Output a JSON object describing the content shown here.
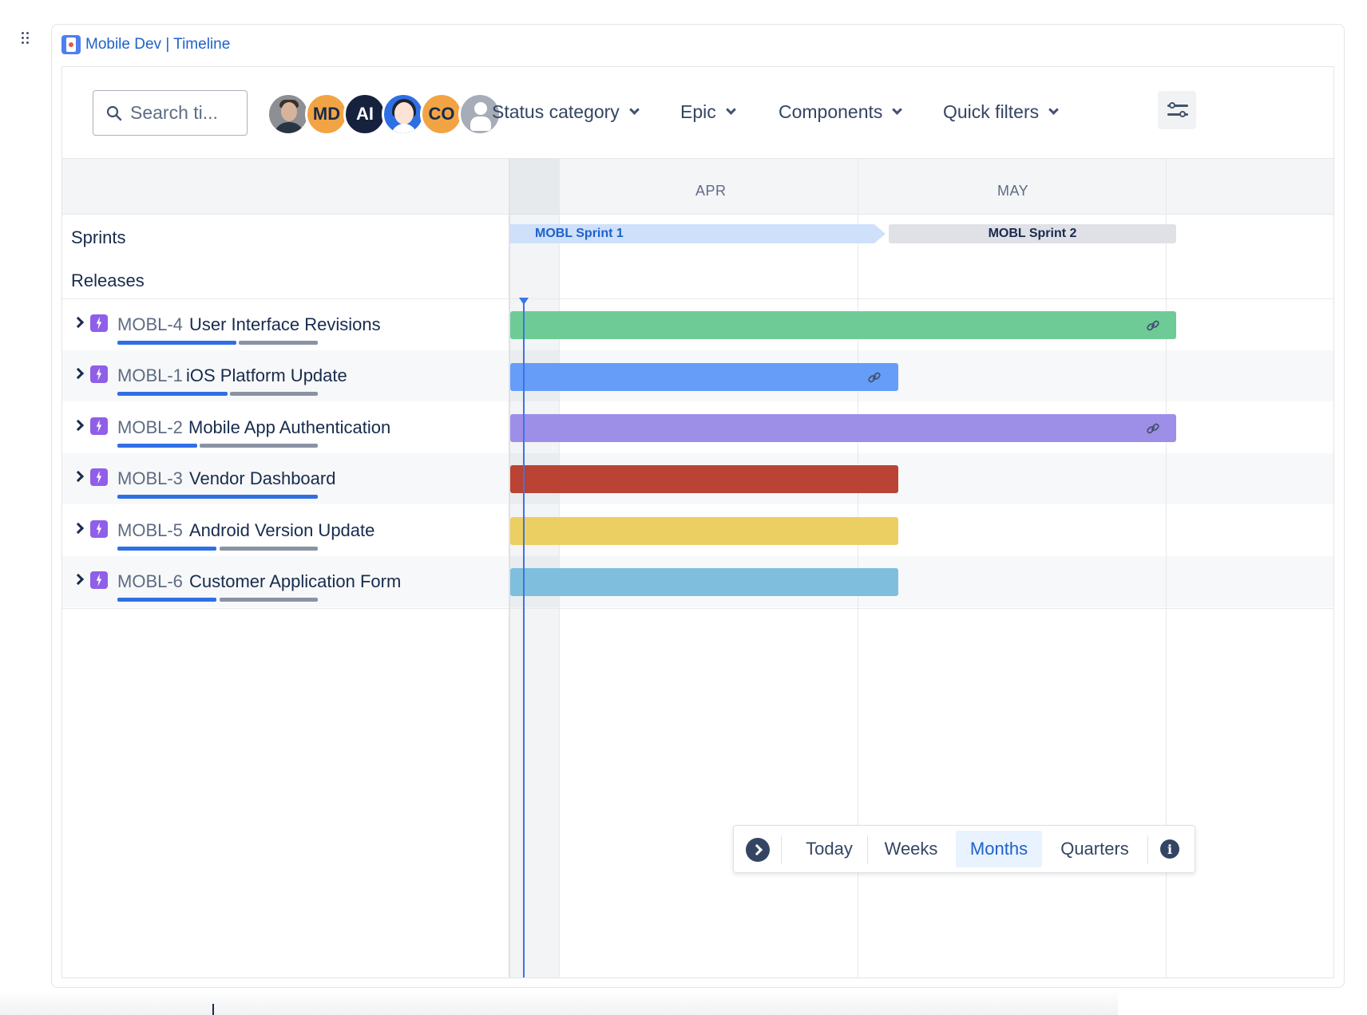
{
  "embed": {
    "title": "Mobile Dev | Timeline"
  },
  "toolbar": {
    "search_placeholder": "Search ti...",
    "avatars": [
      {
        "initials": "",
        "kind": "photo"
      },
      {
        "initials": "MD",
        "color": "#f2a444"
      },
      {
        "initials": "AI",
        "color": "#16213e"
      },
      {
        "initials": "",
        "kind": "illustration"
      },
      {
        "initials": "CO",
        "color": "#f2a444"
      },
      {
        "initials": "",
        "kind": "generic"
      }
    ],
    "filters": [
      {
        "label": "Status category"
      },
      {
        "label": "Epic"
      },
      {
        "label": "Components"
      },
      {
        "label": "Quick filters"
      }
    ]
  },
  "left": {
    "sprints_label": "Sprints",
    "releases_label": "Releases"
  },
  "timeline": {
    "months": [
      "APR",
      "MAY"
    ],
    "sprints": [
      {
        "name": "MOBL Sprint 1",
        "status": "active",
        "color": "#cfe0fb"
      },
      {
        "name": "MOBL Sprint 2",
        "status": "future",
        "color": "#dfe1e6"
      }
    ],
    "today_marker_color": "#3b74e6"
  },
  "epics": [
    {
      "key": "MOBL-4",
      "title": "User Interface Revisions",
      "bar_color": "#6fcb96",
      "done_fraction": 0.6,
      "linked": true
    },
    {
      "key": "MOBL-1",
      "title": "iOS Platform Update",
      "bar_color": "#669df8",
      "done_fraction": 0.55,
      "linked": true
    },
    {
      "key": "MOBL-2",
      "title": "Mobile App Authentication",
      "bar_color": "#9d8fe8",
      "done_fraction": 0.4,
      "linked": true
    },
    {
      "key": "MOBL-3",
      "title": "Vendor Dashboard",
      "bar_color": "#bb4334",
      "done_fraction": 1.0,
      "linked": false
    },
    {
      "key": "MOBL-5",
      "title": "Android Version Update",
      "bar_color": "#eccf62",
      "done_fraction": 0.5,
      "linked": false
    },
    {
      "key": "MOBL-6",
      "title": "Customer Application Form",
      "bar_color": "#7fbfdd",
      "done_fraction": 0.5,
      "linked": false
    }
  ],
  "view_controls": {
    "today": "Today",
    "weeks": "Weeks",
    "months": "Months",
    "quarters": "Quarters",
    "active": "Months",
    "info": "i"
  }
}
